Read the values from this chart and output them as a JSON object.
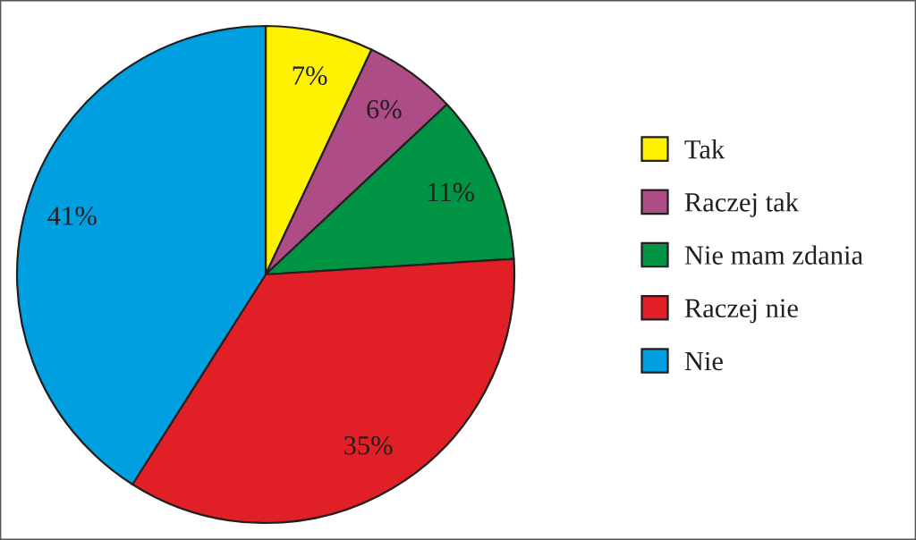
{
  "chart_data": {
    "type": "pie",
    "categories": [
      "Tak",
      "Raczej tak",
      "Nie mam zdania",
      "Raczej nie",
      "Nie"
    ],
    "values": [
      7,
      6,
      11,
      35,
      41
    ],
    "colors": [
      "#fff200",
      "#ae4c85",
      "#009444",
      "#e11f26",
      "#009fe0"
    ],
    "value_labels": [
      "7%",
      "6%",
      "11%",
      "35%",
      "41%"
    ],
    "legend": "right"
  }
}
